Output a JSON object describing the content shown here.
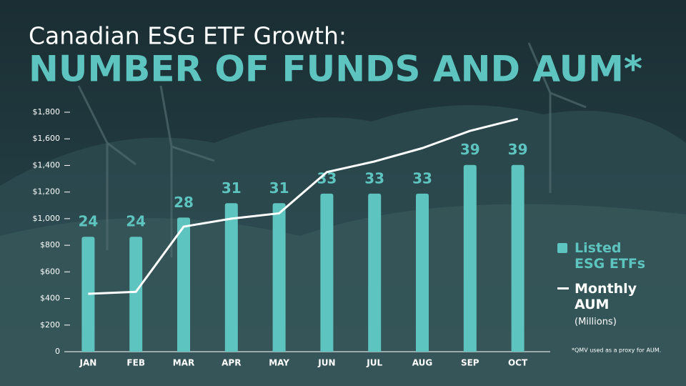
{
  "chart_data": {
    "type": "bar_line",
    "title": "Canadian ESG ETF Growth:",
    "subtitle": "NUMBER OF FUNDS AND AUM*",
    "categories": [
      "JAN",
      "FEB",
      "MAR",
      "APR",
      "MAY",
      "JUN",
      "JUL",
      "AUG",
      "SEP",
      "OCT"
    ],
    "series": [
      {
        "name": "Listed ESG ETFs",
        "type": "bar",
        "axis": "y2",
        "color": "#5ec4bf",
        "values": [
          24,
          24,
          28,
          31,
          31,
          33,
          33,
          33,
          39,
          39
        ]
      },
      {
        "name": "Monthly AUM",
        "unit": "(Millions)",
        "type": "line",
        "color": "#ffffff",
        "values": [
          435,
          450,
          940,
          1000,
          1040,
          1350,
          1430,
          1530,
          1660,
          1750
        ]
      }
    ],
    "ylim": [
      0,
      1800
    ],
    "yticks": [
      0,
      {
        "value": 200,
        "label": "$200"
      },
      {
        "value": 400,
        "label": "$400"
      },
      {
        "value": 600,
        "label": "$600"
      },
      {
        "value": 800,
        "label": "$800"
      },
      {
        "value": 1000,
        "label": "$1,000"
      },
      {
        "value": 1200,
        "label": "$1,200"
      },
      {
        "value": 1400,
        "label": "$1,400"
      },
      {
        "value": 1600,
        "label": "$1,600"
      },
      {
        "value": 1800,
        "label": "$1,800"
      }
    ],
    "y2lim": [
      0,
      50
    ],
    "footnote": "*QMV used as a proxy for AUM."
  }
}
